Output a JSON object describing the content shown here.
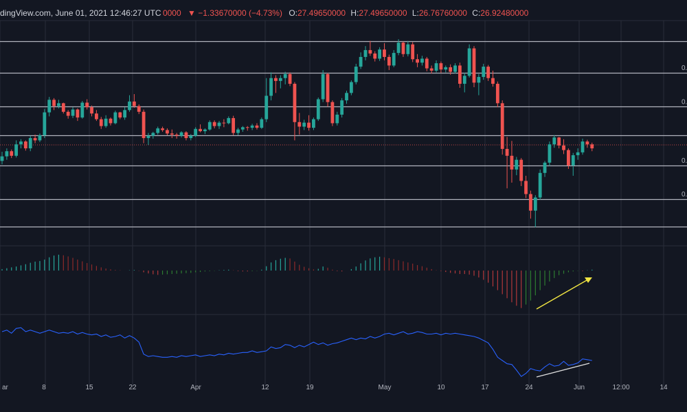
{
  "header": {
    "source": "dingView.com, June 01, 2021 12:46:27 UTC",
    "volume": "0000",
    "change": "▼ −1.33670000 (−4.73%)",
    "open_label": "O:",
    "open_value": "27.49650000",
    "high_label": "H:",
    "high_value": "27.49650000",
    "low_label": "L:",
    "low_value": "26.76760000",
    "close_label": "C:",
    "close_value": "26.92480000"
  },
  "colors": {
    "background": "#131722",
    "up": "#26a69a",
    "down": "#ef5350",
    "level_line": "#b2b5be",
    "grid": "#2a2e39",
    "momentum_line": "#2962ff",
    "arrow_yellow": "#f0e442",
    "arrow_white": "#e0e0e0",
    "axis_text": "#b2b5be"
  },
  "chart_data": [
    {
      "type": "candlestick",
      "xlabel": "",
      "ylabel": "",
      "x_ticks": [
        "ar",
        "8",
        "15",
        "22",
        "Apr",
        "12",
        "19",
        "May",
        "10",
        "17",
        "24",
        "Jun",
        "12:00",
        "14"
      ],
      "level_labels": [
        "0.",
        "0.",
        "0.",
        "0."
      ],
      "candles": [
        [
          37.4,
          39.0,
          36.8,
          38.2
        ],
        [
          38.2,
          39.6,
          37.6,
          39.1
        ],
        [
          39.1,
          39.4,
          37.9,
          38.3
        ],
        [
          38.3,
          41.0,
          38.0,
          40.3
        ],
        [
          40.3,
          41.2,
          39.6,
          40.8
        ],
        [
          40.8,
          41.0,
          39.2,
          39.6
        ],
        [
          39.6,
          41.8,
          39.1,
          41.4
        ],
        [
          41.4,
          42.0,
          40.5,
          41.0
        ],
        [
          41.0,
          42.2,
          40.7,
          41.9
        ],
        [
          41.9,
          46.5,
          41.4,
          45.9
        ],
        [
          45.9,
          48.6,
          45.2,
          48.1
        ],
        [
          48.1,
          48.4,
          46.3,
          47.0
        ],
        [
          47.0,
          48.1,
          46.6,
          47.5
        ],
        [
          47.5,
          47.6,
          45.7,
          46.0
        ],
        [
          46.0,
          46.3,
          44.8,
          45.3
        ],
        [
          45.3,
          46.8,
          44.9,
          46.4
        ],
        [
          46.4,
          46.6,
          44.4,
          45.0
        ],
        [
          45.0,
          47.9,
          44.8,
          47.6
        ],
        [
          47.6,
          48.2,
          46.4,
          46.8
        ],
        [
          46.8,
          47.1,
          45.2,
          45.7
        ],
        [
          45.7,
          46.3,
          44.4,
          44.7
        ],
        [
          44.7,
          45.1,
          43.0,
          43.5
        ],
        [
          43.5,
          45.4,
          43.2,
          44.8
        ],
        [
          44.8,
          45.0,
          43.6,
          44.0
        ],
        [
          44.0,
          46.2,
          43.8,
          45.9
        ],
        [
          45.9,
          46.0,
          44.7,
          45.0
        ],
        [
          45.0,
          46.8,
          44.6,
          46.3
        ],
        [
          46.3,
          48.9,
          46.0,
          47.8
        ],
        [
          47.8,
          49.1,
          46.7,
          47.0
        ],
        [
          47.0,
          47.3,
          45.6,
          46.0
        ],
        [
          46.0,
          46.4,
          40.5,
          41.4
        ],
        [
          41.4,
          42.3,
          40.2,
          41.8
        ],
        [
          41.8,
          42.5,
          41.3,
          42.3
        ],
        [
          42.3,
          43.4,
          42.0,
          43.1
        ],
        [
          43.1,
          43.4,
          42.5,
          42.8
        ],
        [
          42.8,
          43.1,
          41.9,
          42.2
        ],
        [
          42.2,
          42.9,
          41.4,
          42.0
        ],
        [
          42.0,
          42.3,
          41.3,
          41.8
        ],
        [
          41.8,
          42.6,
          41.5,
          42.4
        ],
        [
          42.4,
          42.6,
          41.0,
          41.4
        ],
        [
          41.4,
          42.1,
          41.0,
          41.8
        ],
        [
          41.8,
          43.3,
          41.6,
          43.0
        ],
        [
          43.0,
          43.8,
          42.4,
          42.6
        ],
        [
          42.6,
          43.1,
          42.1,
          42.9
        ],
        [
          42.9,
          44.5,
          42.7,
          44.2
        ],
        [
          44.2,
          44.5,
          43.1,
          43.5
        ],
        [
          43.5,
          44.4,
          43.0,
          44.1
        ],
        [
          44.1,
          44.7,
          43.3,
          44.0
        ],
        [
          44.0,
          45.2,
          43.8,
          44.9
        ],
        [
          44.9,
          45.3,
          41.9,
          42.3
        ],
        [
          42.3,
          43.2,
          41.9,
          42.9
        ],
        [
          42.9,
          43.5,
          42.5,
          43.3
        ],
        [
          43.3,
          43.5,
          42.7,
          43.2
        ],
        [
          43.2,
          43.9,
          42.8,
          43.6
        ],
        [
          43.6,
          44.0,
          42.9,
          43.2
        ],
        [
          43.2,
          45.0,
          43.0,
          44.7
        ],
        [
          44.7,
          51.9,
          44.2,
          48.8
        ],
        [
          48.8,
          52.9,
          48.0,
          51.9
        ],
        [
          51.9,
          52.4,
          49.3,
          51.4
        ],
        [
          51.4,
          52.4,
          50.1,
          51.9
        ],
        [
          51.9,
          53.0,
          50.8,
          52.6
        ],
        [
          52.6,
          52.9,
          50.5,
          50.9
        ],
        [
          50.9,
          51.2,
          41.0,
          44.2
        ],
        [
          44.2,
          45.8,
          42.0,
          43.4
        ],
        [
          43.4,
          44.6,
          42.8,
          44.1
        ],
        [
          44.1,
          45.4,
          42.7,
          43.2
        ],
        [
          43.2,
          45.0,
          42.8,
          44.7
        ],
        [
          44.7,
          48.5,
          44.4,
          48.2
        ],
        [
          48.2,
          53.3,
          47.7,
          52.6
        ],
        [
          52.6,
          52.8,
          46.9,
          47.7
        ],
        [
          47.7,
          48.0,
          43.5,
          44.0
        ],
        [
          44.0,
          46.0,
          43.6,
          45.5
        ],
        [
          45.5,
          48.4,
          45.0,
          48.0
        ],
        [
          48.0,
          49.7,
          47.4,
          49.3
        ],
        [
          49.3,
          51.5,
          48.9,
          51.2
        ],
        [
          51.2,
          54.4,
          50.8,
          53.9
        ],
        [
          53.9,
          56.4,
          53.5,
          55.6
        ],
        [
          55.6,
          57.5,
          55.0,
          56.8
        ],
        [
          56.8,
          58.4,
          55.8,
          56.2
        ],
        [
          56.2,
          56.6,
          54.8,
          55.3
        ],
        [
          55.3,
          57.3,
          54.9,
          56.9
        ],
        [
          56.9,
          58.0,
          55.0,
          55.6
        ],
        [
          55.6,
          56.0,
          53.3,
          54.1
        ],
        [
          54.1,
          56.8,
          53.8,
          56.3
        ],
        [
          56.3,
          58.7,
          55.9,
          58.1
        ],
        [
          58.1,
          58.3,
          55.6,
          56.1
        ],
        [
          56.1,
          58.4,
          55.7,
          57.8
        ],
        [
          57.8,
          58.2,
          54.7,
          55.2
        ],
        [
          55.2,
          56.1,
          53.8,
          54.6
        ],
        [
          54.6,
          55.8,
          54.1,
          55.3
        ],
        [
          55.3,
          55.6,
          53.1,
          53.6
        ],
        [
          53.6,
          54.1,
          52.7,
          53.2
        ],
        [
          53.2,
          55.0,
          52.9,
          54.5
        ],
        [
          54.5,
          54.8,
          52.8,
          53.4
        ],
        [
          53.4,
          54.1,
          52.9,
          53.8
        ],
        [
          53.8,
          54.3,
          52.5,
          53.0
        ],
        [
          53.0,
          54.5,
          52.7,
          54.1
        ],
        [
          54.1,
          54.6,
          50.2,
          50.9
        ],
        [
          50.9,
          52.8,
          49.4,
          52.3
        ],
        [
          52.3,
          57.8,
          52.0,
          57.1
        ],
        [
          57.1,
          57.5,
          50.3,
          51.1
        ],
        [
          51.1,
          52.6,
          48.9,
          52.1
        ],
        [
          52.1,
          54.4,
          51.6,
          53.9
        ],
        [
          53.9,
          54.2,
          51.4,
          51.9
        ],
        [
          51.9,
          53.2,
          50.4,
          50.9
        ],
        [
          50.9,
          51.3,
          46.8,
          47.5
        ],
        [
          47.5,
          48.0,
          38.5,
          39.5
        ],
        [
          39.5,
          41.6,
          32.6,
          38.3
        ],
        [
          38.3,
          40.9,
          33.6,
          35.9
        ],
        [
          35.9,
          38.1,
          34.9,
          37.6
        ],
        [
          37.6,
          37.9,
          33.0,
          33.9
        ],
        [
          33.9,
          34.8,
          30.9,
          31.6
        ],
        [
          31.6,
          32.2,
          27.3,
          28.7
        ],
        [
          28.7,
          31.4,
          25.8,
          31.0
        ],
        [
          31.0,
          35.9,
          30.6,
          35.3
        ],
        [
          35.3,
          37.4,
          34.6,
          37.1
        ],
        [
          37.1,
          40.8,
          36.5,
          40.3
        ],
        [
          40.3,
          41.9,
          39.7,
          41.5
        ],
        [
          41.5,
          41.6,
          39.6,
          40.1
        ],
        [
          40.1,
          41.2,
          38.6,
          39.3
        ],
        [
          39.3,
          39.6,
          36.0,
          36.6
        ],
        [
          36.6,
          38.8,
          34.8,
          38.4
        ],
        [
          38.4,
          39.6,
          37.6,
          38.9
        ],
        [
          38.9,
          41.3,
          38.5,
          40.8
        ],
        [
          40.8,
          41.1,
          39.7,
          40.3
        ],
        [
          40.3,
          40.6,
          39.1,
          39.6
        ]
      ],
      "histogram": [
        0.5,
        0.8,
        1.1,
        1.4,
        1.8,
        2.2,
        2.7,
        3.1,
        3.3,
        3.8,
        4.6,
        5.2,
        5.5,
        5.3,
        4.9,
        4.4,
        3.8,
        3.2,
        2.6,
        2.1,
        1.6,
        1.1,
        0.7,
        0.4,
        0.2,
        0.1,
        0.0,
        0.1,
        0.2,
        -0.1,
        -0.6,
        -1.0,
        -1.3,
        -1.5,
        -1.4,
        -1.3,
        -1.2,
        -1.1,
        -1.0,
        -0.9,
        -0.8,
        -0.6,
        -0.5,
        -0.3,
        -0.2,
        -0.1,
        0.1,
        0.2,
        0.3,
        0.1,
        -0.2,
        -0.3,
        -0.3,
        -0.2,
        -0.1,
        0.3,
        1.5,
        2.8,
        3.6,
        4.1,
        4.4,
        4.2,
        3.1,
        2.0,
        1.3,
        0.8,
        0.4,
        0.6,
        1.4,
        1.0,
        0.3,
        -0.2,
        -0.3,
        0.0,
        0.5,
        1.4,
        2.5,
        3.5,
        4.2,
        4.6,
        4.8,
        4.6,
        4.3,
        4.0,
        3.6,
        3.2,
        2.8,
        2.4,
        1.9,
        1.5,
        1.0,
        0.5,
        0.1,
        -0.2,
        -0.5,
        -0.8,
        -1.0,
        -1.2,
        -1.2,
        -1.4,
        -1.8,
        -2.4,
        -3.2,
        -4.2,
        -5.5,
        -6.8,
        -8.2,
        -9.6,
        -11.0,
        -12.2,
        -13.0,
        -11.8,
        -10.4,
        -8.6,
        -6.8,
        -5.2,
        -3.8,
        -2.6,
        -1.6,
        -1.1,
        -0.6,
        -0.3,
        -0.1,
        -0.2,
        0.1,
        0.3
      ],
      "momentum": [
        53.0,
        54.0,
        52.0,
        55.0,
        55.5,
        53.0,
        54.0,
        53.0,
        52.0,
        53.0,
        54.0,
        53.0,
        52.0,
        52.5,
        52.0,
        53.0,
        51.5,
        52.5,
        51.5,
        51.0,
        51.5,
        50.0,
        51.0,
        49.5,
        50.0,
        51.0,
        49.0,
        50.5,
        49.0,
        46.5,
        39.0,
        37.5,
        38.0,
        37.5,
        37.0,
        37.0,
        37.5,
        37.0,
        38.0,
        37.5,
        38.0,
        38.5,
        37.5,
        38.0,
        38.5,
        38.0,
        39.0,
        38.5,
        39.5,
        39.0,
        39.5,
        40.0,
        40.0,
        41.0,
        40.0,
        40.5,
        41.0,
        43.5,
        42.5,
        43.0,
        45.0,
        44.5,
        43.0,
        44.5,
        43.5,
        45.0,
        46.5,
        45.0,
        46.0,
        44.5,
        45.5,
        46.0,
        47.0,
        48.0,
        49.0,
        48.0,
        49.0,
        48.5,
        50.0,
        49.0,
        50.0,
        51.5,
        52.0,
        51.0,
        52.0,
        53.0,
        51.5,
        52.0,
        53.0,
        52.5,
        51.5,
        51.5,
        52.0,
        51.0,
        52.0,
        51.5,
        52.0,
        51.5,
        51.0,
        50.5,
        50.0,
        49.0,
        47.5,
        46.0,
        42.0,
        37.0,
        35.0,
        33.0,
        32.5,
        29.0,
        25.0,
        27.0,
        30.0,
        29.0,
        28.5,
        31.0,
        33.0,
        31.5,
        32.0,
        34.5,
        32.0,
        32.5,
        33.5,
        36.0,
        35.5,
        35.0
      ],
      "horizontal_levels": [
        58.3,
        52.8,
        46.9,
        41.9,
        36.6,
        30.7,
        25.9
      ],
      "current_price": 40.2
    }
  ]
}
